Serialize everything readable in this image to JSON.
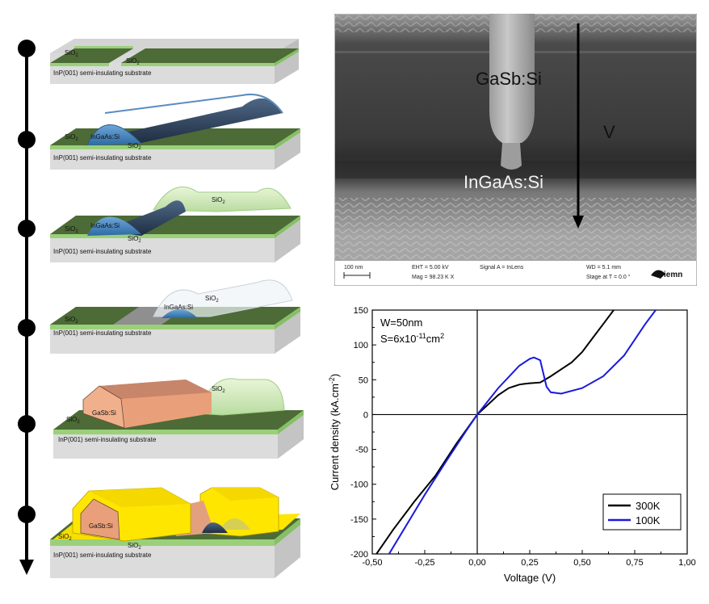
{
  "process": {
    "steps": [
      {
        "labels": {
          "sio2_a": "SiO2",
          "sio2_b": "SiO2"
        },
        "substrate": "InP(001) semi-insulating substrate"
      },
      {
        "labels": {
          "sio2_a": "SiO2",
          "ingaas": "InGaAs:Si",
          "sio2_b": "SiO2"
        },
        "substrate": "InP(001) semi-insulating substrate"
      },
      {
        "labels": {
          "sio2_a": "SiO2",
          "ingaas": "InGaAs:Si",
          "sio2_b": "SiO2",
          "sio2_dome": "SiO2"
        },
        "substrate": "InP(001) semi-insulating substrate"
      },
      {
        "labels": {
          "sio2_a": "SiO2",
          "ingaas": "InGaAs:Si",
          "sio2_dome": "SiO2"
        },
        "substrate": "InP(001) semi-insulating substrate"
      },
      {
        "labels": {
          "sio2_a": "SiO2",
          "gasb": "GaSb:Si",
          "sio2_dome": "SiO2"
        },
        "substrate": "InP(001) semi-insulating substrate"
      },
      {
        "labels": {
          "sio2_a": "SiO2",
          "gasb": "GaSb:Si",
          "sio2_b": "SiO2"
        },
        "substrate": "InP(001) semi-insulating substrate"
      }
    ]
  },
  "sem": {
    "label_gasb": "GaSb:Si",
    "label_ingaas": "InGaAs:Si",
    "label_v": "V",
    "info": {
      "scale": "100 nm",
      "eht": "EHT =  5.00 kV",
      "mag": "Mag =  98.23 K X",
      "signal": "Signal A = InLens",
      "wd": "WD =  5.1 mm",
      "stage": "Stage at T =   0.0 °",
      "logo": "iemn"
    }
  },
  "chart_data": {
    "type": "line",
    "xlabel": "Voltage (V)",
    "ylabel_text": "Current density (kA.cm",
    "ylabel_sup": "-2",
    "ylabel_end": ")",
    "xlim": [
      -0.5,
      1.0
    ],
    "ylim": [
      -200,
      150
    ],
    "xticks": [
      -0.5,
      -0.25,
      0,
      0.25,
      0.5,
      0.75,
      1.0
    ],
    "xtick_labels": [
      "-0,50",
      "-0,25",
      "0,00",
      "0,25",
      "0,50",
      "0,75",
      "1,00"
    ],
    "yticks": [
      -200,
      -150,
      -100,
      -50,
      0,
      50,
      100,
      150
    ],
    "ytick_labels": [
      "-200",
      "-150",
      "-100",
      "-50",
      "0",
      "50",
      "100",
      "150"
    ],
    "annotation_w": "W=50nm",
    "annotation_s_main": "S=6x10",
    "annotation_s_exp": "-11",
    "annotation_s_unit": "cm",
    "annotation_s_unit_exp": "2",
    "legend_position": "bottom-right",
    "series": [
      {
        "name": "300K",
        "color": "#000000",
        "x": [
          -0.48,
          -0.4,
          -0.3,
          -0.2,
          -0.1,
          0.0,
          0.1,
          0.15,
          0.2,
          0.22,
          0.25,
          0.3,
          0.35,
          0.4,
          0.45,
          0.5,
          0.55,
          0.6,
          0.65
        ],
        "y": [
          -200,
          -165,
          -125,
          -88,
          -42,
          0,
          28,
          38,
          43,
          44,
          45,
          46,
          55,
          65,
          75,
          90,
          110,
          130,
          150
        ]
      },
      {
        "name": "100K",
        "color": "#1a1adc",
        "x": [
          -0.42,
          -0.35,
          -0.25,
          -0.15,
          -0.05,
          0.0,
          0.1,
          0.2,
          0.25,
          0.27,
          0.3,
          0.33,
          0.35,
          0.4,
          0.5,
          0.6,
          0.7,
          0.8,
          0.85
        ],
        "y": [
          -200,
          -165,
          -115,
          -68,
          -22,
          0,
          38,
          70,
          80,
          82,
          78,
          40,
          32,
          30,
          38,
          55,
          85,
          130,
          150
        ]
      }
    ]
  }
}
